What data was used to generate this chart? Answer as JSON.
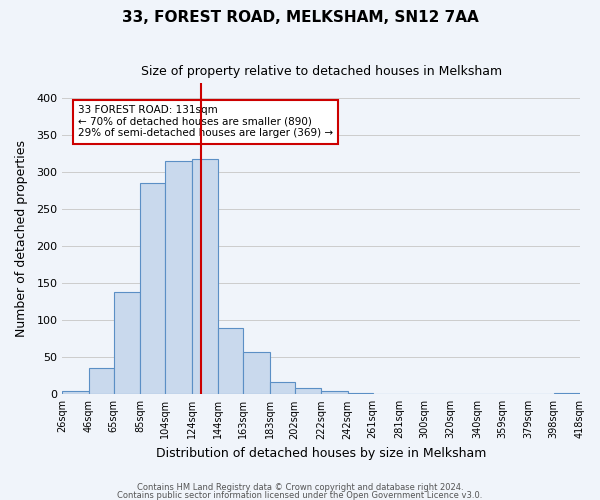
{
  "title": "33, FOREST ROAD, MELKSHAM, SN12 7AA",
  "subtitle": "Size of property relative to detached houses in Melksham",
  "xlabel": "Distribution of detached houses by size in Melksham",
  "ylabel": "Number of detached properties",
  "bin_edges": [
    26,
    46,
    65,
    85,
    104,
    124,
    144,
    163,
    183,
    202,
    222,
    242,
    261,
    281,
    300,
    320,
    340,
    359,
    379,
    398,
    418
  ],
  "bar_heights": [
    5,
    35,
    138,
    285,
    315,
    318,
    90,
    57,
    16,
    9,
    4,
    2,
    0,
    1,
    0,
    0,
    1,
    0,
    0,
    2
  ],
  "bar_color": "#c9d9ed",
  "bar_edge_color": "#5b8fc5",
  "grid_color": "#cccccc",
  "annotation_title": "33 FOREST ROAD: 131sqm",
  "annotation_line1": "← 70% of detached houses are smaller (890)",
  "annotation_line2": "29% of semi-detached houses are larger (369) →",
  "annotation_box_color": "#ffffff",
  "annotation_box_edge": "#cc0000",
  "marker_line_color": "#cc0000",
  "marker_sqm": 131,
  "ylim": [
    0,
    420
  ],
  "yticks": [
    0,
    50,
    100,
    150,
    200,
    250,
    300,
    350,
    400
  ],
  "footer1": "Contains HM Land Registry data © Crown copyright and database right 2024.",
  "footer2": "Contains public sector information licensed under the Open Government Licence v3.0.",
  "background_color": "#f0f4fa"
}
